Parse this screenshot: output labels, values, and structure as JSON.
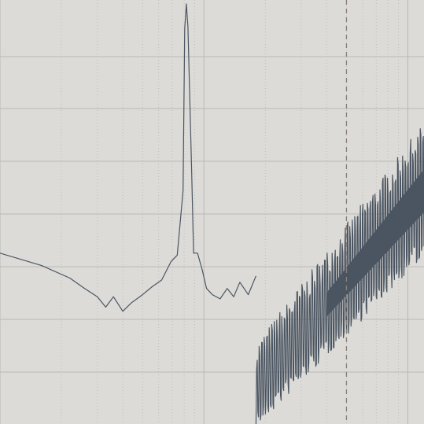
{
  "chart_data": {
    "type": "line",
    "title": "",
    "xlabel": "",
    "ylabel": "",
    "x_scale": "log",
    "grid": true,
    "legend": "none",
    "colors": {
      "background": "#dcdbd8",
      "grid": "#b9b8b5",
      "trace": "#4b5561",
      "marker": "#8a7f76"
    },
    "series": [
      {
        "values": [
          [
            1,
            8.0
          ],
          [
            1.6,
            7.4
          ],
          [
            2.2,
            6.8
          ],
          [
            2.6,
            6.3
          ],
          [
            3.0,
            5.9
          ],
          [
            3.3,
            5.4
          ],
          [
            3.6,
            5.9
          ],
          [
            4.0,
            5.2
          ],
          [
            4.4,
            5.6
          ],
          [
            5.0,
            6.0
          ],
          [
            5.6,
            6.4
          ],
          [
            6.2,
            6.7
          ],
          [
            6.9,
            7.6
          ],
          [
            7.4,
            7.9
          ],
          [
            7.9,
            11.0
          ],
          [
            8.05,
            18.8
          ],
          [
            8.2,
            20.0
          ],
          [
            8.35,
            18.9
          ],
          [
            8.7,
            12.0
          ],
          [
            8.9,
            8.0
          ],
          [
            9.3,
            8.0
          ],
          [
            9.8,
            7.2
          ],
          [
            10.3,
            6.3
          ],
          [
            11.0,
            6.0
          ],
          [
            12.0,
            5.8
          ],
          [
            13.0,
            6.3
          ],
          [
            14.0,
            5.9
          ],
          [
            15.0,
            6.6
          ],
          [
            16.5,
            6.0
          ],
          [
            18.0,
            6.9
          ]
        ]
      }
    ],
    "marker_x": 50
  }
}
